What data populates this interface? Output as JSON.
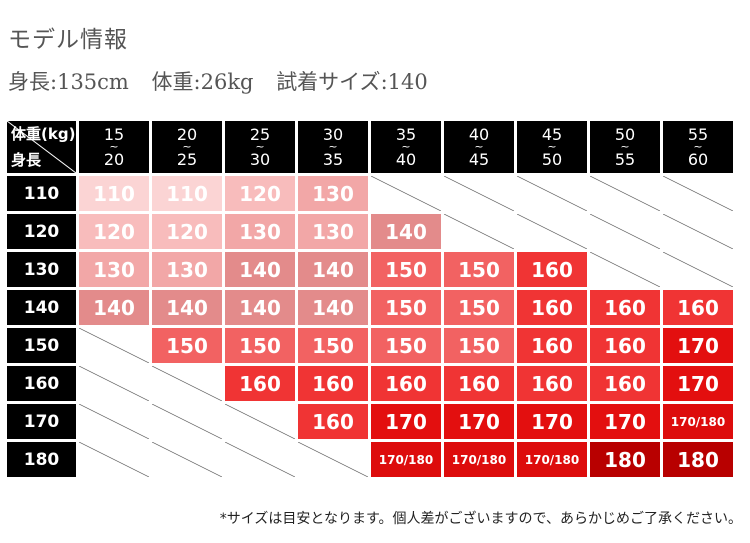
{
  "title": "モデル情報",
  "model_info": [
    {
      "label": "身長",
      "value": "135cm"
    },
    {
      "label": "体重",
      "value": "26kg"
    },
    {
      "label": "試着サイズ",
      "value": "140"
    }
  ],
  "table": {
    "corner_weight": "体重(kg)",
    "corner_height": "身長",
    "tilde": "~",
    "weight_ranges": [
      {
        "lo": "15",
        "hi": "20"
      },
      {
        "lo": "20",
        "hi": "25"
      },
      {
        "lo": "25",
        "hi": "30"
      },
      {
        "lo": "30",
        "hi": "35"
      },
      {
        "lo": "35",
        "hi": "40"
      },
      {
        "lo": "40",
        "hi": "45"
      },
      {
        "lo": "45",
        "hi": "50"
      },
      {
        "lo": "50",
        "hi": "55"
      },
      {
        "lo": "55",
        "hi": "60"
      }
    ],
    "rows": [
      {
        "height": "110",
        "cells": [
          "110",
          "110",
          "120",
          "130",
          null,
          null,
          null,
          null,
          null
        ]
      },
      {
        "height": "120",
        "cells": [
          "120",
          "120",
          "130",
          "130",
          "140",
          null,
          null,
          null,
          null
        ]
      },
      {
        "height": "130",
        "cells": [
          "130",
          "130",
          "140",
          "140",
          "150",
          "150",
          "160",
          null,
          null
        ]
      },
      {
        "height": "140",
        "cells": [
          "140",
          "140",
          "140",
          "140",
          "150",
          "150",
          "160",
          "160",
          "160"
        ]
      },
      {
        "height": "150",
        "cells": [
          null,
          "150",
          "150",
          "150",
          "150",
          "150",
          "160",
          "160",
          "170"
        ]
      },
      {
        "height": "160",
        "cells": [
          null,
          null,
          "160",
          "160",
          "160",
          "160",
          "160",
          "160",
          "170"
        ]
      },
      {
        "height": "170",
        "cells": [
          null,
          null,
          null,
          "160",
          "170",
          "170",
          "170",
          "170",
          "170/180"
        ]
      },
      {
        "height": "180",
        "cells": [
          null,
          null,
          null,
          null,
          "170/180",
          "170/180",
          "170/180",
          "180",
          "180"
        ]
      }
    ]
  },
  "size_colors": {
    "110": "#fbd4d4",
    "120": "#f8bcbc",
    "130": "#f2a7a7",
    "140": "#e38b8b",
    "150": "#f26262",
    "160": "#f03434",
    "170": "#e30f0f",
    "170/180": "#dd0c0c",
    "180": "#b80000"
  },
  "note": "*サイズは目安となります。個人差がございますので、あらかじめご了承ください。"
}
